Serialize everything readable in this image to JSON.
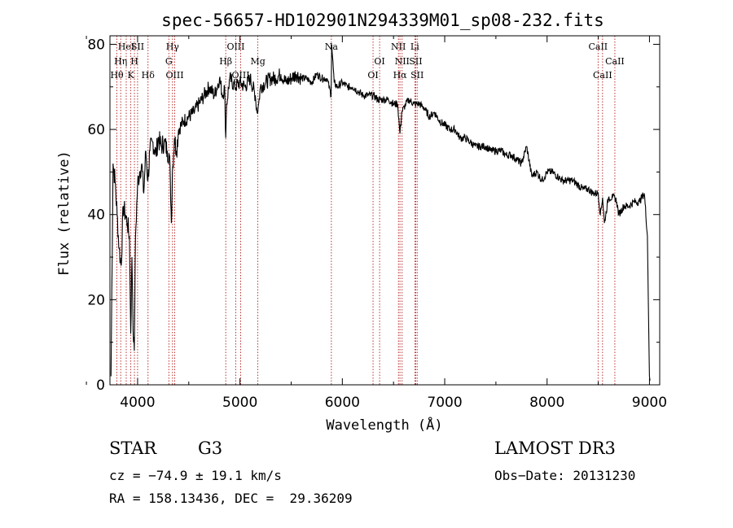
{
  "chart_data": {
    "type": "line",
    "title": "spec-56657-HD102901N294339M01_sp08-232.fits",
    "xlabel": "Wavelength (Å)",
    "ylabel": "Flux (relative)",
    "xlim": [
      3730,
      9100
    ],
    "ylim": [
      0,
      82
    ],
    "x_ticks": [
      4000,
      5000,
      6000,
      7000,
      8000,
      9000
    ],
    "y_ticks": [
      0,
      20,
      40,
      60,
      80
    ],
    "series": [
      {
        "name": "spectrum",
        "x": [
          3740,
          3760,
          3780,
          3800,
          3820,
          3840,
          3860,
          3880,
          3900,
          3920,
          3933,
          3945,
          3960,
          3968,
          3980,
          4000,
          4020,
          4040,
          4060,
          4080,
          4101,
          4120,
          4150,
          4180,
          4200,
          4230,
          4260,
          4290,
          4310,
          4320,
          4330,
          4340,
          4360,
          4380,
          4400,
          4450,
          4500,
          4550,
          4600,
          4650,
          4700,
          4750,
          4800,
          4830,
          4850,
          4861,
          4870,
          4900,
          4950,
          5000,
          5050,
          5100,
          5150,
          5167,
          5183,
          5200,
          5250,
          5300,
          5350,
          5400,
          5450,
          5500,
          5550,
          5600,
          5650,
          5700,
          5750,
          5800,
          5850,
          5890,
          5896,
          5920,
          5950,
          6000,
          6050,
          6100,
          6150,
          6200,
          6250,
          6300,
          6350,
          6400,
          6450,
          6500,
          6540,
          6563,
          6580,
          6620,
          6650,
          6700,
          6750,
          6800,
          6850,
          6900,
          6950,
          7000,
          7050,
          7100,
          7150,
          7200,
          7250,
          7300,
          7350,
          7400,
          7450,
          7500,
          7550,
          7600,
          7650,
          7700,
          7750,
          7800,
          7850,
          7900,
          7950,
          8000,
          8050,
          8100,
          8150,
          8200,
          8250,
          8300,
          8350,
          8400,
          8450,
          8500,
          8520,
          8542,
          8560,
          8600,
          8640,
          8662,
          8680,
          8700,
          8750,
          8800,
          8850,
          8900,
          8950,
          8980,
          9000,
          9005
        ],
        "values": [
          2,
          52,
          48,
          40,
          32,
          28,
          42,
          40,
          38,
          35,
          12,
          30,
          10,
          8,
          35,
          47,
          50,
          52,
          45,
          55,
          48,
          55,
          57,
          54,
          58,
          56,
          57,
          55,
          54,
          48,
          38,
          50,
          58,
          55,
          60,
          62,
          63,
          64,
          66,
          68,
          70,
          68,
          72,
          68,
          70,
          58,
          66,
          72,
          70,
          71,
          70,
          72,
          68,
          64,
          66,
          70,
          71,
          72,
          72,
          73,
          71,
          72,
          73,
          72,
          72,
          71,
          73,
          72,
          72,
          68,
          80,
          71,
          70,
          71,
          70,
          70,
          69,
          68,
          68,
          68,
          67,
          67,
          67,
          66,
          66,
          59,
          64,
          66,
          67,
          66,
          66,
          65,
          63,
          64,
          62,
          61,
          60,
          60,
          58,
          58,
          57,
          56,
          56,
          56,
          55,
          55,
          55,
          54,
          54,
          53,
          52,
          56,
          49,
          50,
          48,
          50,
          50,
          49,
          48,
          48,
          48,
          47,
          46,
          46,
          45,
          45,
          40,
          44,
          38,
          44,
          44,
          44,
          43,
          40,
          42,
          42,
          43,
          43,
          45,
          35,
          2,
          1
        ]
      }
    ],
    "lines": [
      {
        "label": "Hθ",
        "wave": 3798,
        "row": 3
      },
      {
        "label": "Hη",
        "wave": 3835,
        "row": 2
      },
      {
        "label": "HeI",
        "wave": 3889,
        "row": 1
      },
      {
        "label": "K",
        "wave": 3934,
        "row": 3
      },
      {
        "label": "H",
        "wave": 3969,
        "row": 2
      },
      {
        "label": "SII",
        "wave": 4000,
        "row": 1
      },
      {
        "label": "Hδ",
        "wave": 4102,
        "row": 3
      },
      {
        "label": "G",
        "wave": 4305,
        "row": 2
      },
      {
        "label": "Hγ",
        "wave": 4341,
        "row": 1
      },
      {
        "label": "OIII",
        "wave": 4363,
        "row": 3
      },
      {
        "label": "Hβ",
        "wave": 4861,
        "row": 2
      },
      {
        "label": "OIII",
        "wave": 4959,
        "row": 1
      },
      {
        "label": "OIII",
        "wave": 5007,
        "row": 3
      },
      {
        "label": "Mg",
        "wave": 5175,
        "row": 2
      },
      {
        "label": "Na",
        "wave": 5893,
        "row": 1
      },
      {
        "label": "OI",
        "wave": 6300,
        "row": 3
      },
      {
        "label": "OI",
        "wave": 6364,
        "row": 2
      },
      {
        "label": "NII",
        "wave": 6548,
        "row": 1
      },
      {
        "label": "Hα",
        "wave": 6563,
        "row": 3
      },
      {
        "label": "NII",
        "wave": 6584,
        "row": 2
      },
      {
        "label": "Li",
        "wave": 6708,
        "row": 1
      },
      {
        "label": "SII",
        "wave": 6717,
        "row": 2
      },
      {
        "label": "SII",
        "wave": 6731,
        "row": 3
      },
      {
        "label": "CaII",
        "wave": 8498,
        "row": 1
      },
      {
        "label": "CaII",
        "wave": 8542,
        "row": 3
      },
      {
        "label": "CaII",
        "wave": 8662,
        "row": 2
      }
    ],
    "colors": {
      "spectrum": "#000000",
      "lines": "#aa0000"
    }
  },
  "info": {
    "class": "STAR",
    "subclass": "G3",
    "survey": "LAMOST DR3",
    "cz": "cz = −74.9 ± 19.1 km/s",
    "obs_date": "Obs−Date: 20131230",
    "coords": "RA = 158.13436, DEC =  29.36209"
  }
}
